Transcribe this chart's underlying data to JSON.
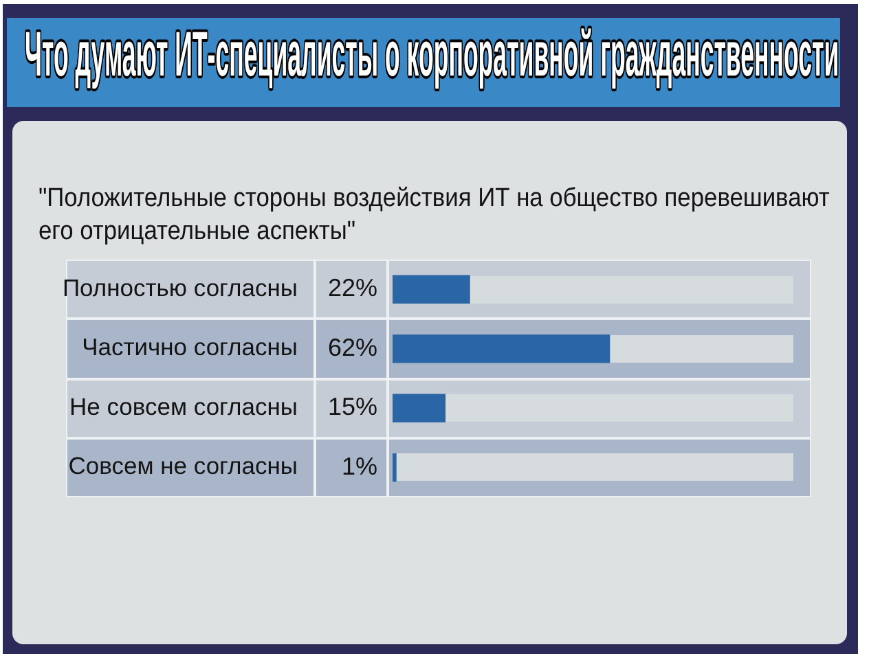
{
  "chart_data": {
    "type": "bar",
    "orientation": "horizontal",
    "title": "Что думают ИТ-специалисты о корпоративной гражданственности",
    "subtitle": "\"Положительные стороны воздействия ИТ на общество перевешивают его отрицательные аспекты\"",
    "categories": [
      "Полностью согласны",
      "Частично согласны",
      "Не совсем согласны",
      "Совсем не согласны"
    ],
    "values": [
      22,
      62,
      15,
      1
    ],
    "color": "#2a66a6",
    "value_labels": [
      "22%",
      "62%",
      "15%",
      "1%"
    ],
    "tick_labels": "y"
  }
}
